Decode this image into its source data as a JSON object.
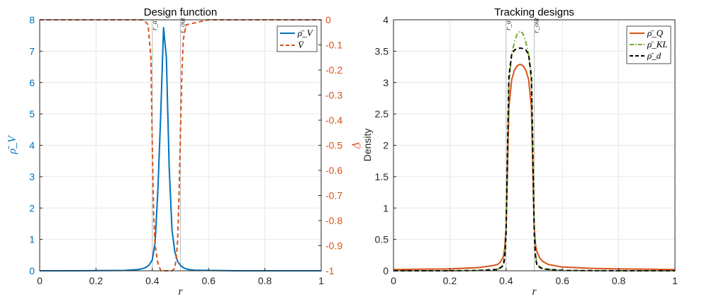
{
  "chart_data": [
    {
      "type": "line",
      "title": "Design function",
      "xlabel": "r",
      "ylabel": "ρ̄_V",
      "ylabel_right": "V̄",
      "xlim": [
        0,
        1
      ],
      "ylim": [
        0,
        8
      ],
      "ylim_right": [
        -1,
        0
      ],
      "xticks": [
        0,
        0.2,
        0.4,
        0.6,
        0.8,
        1
      ],
      "xtick_labels": [
        "0",
        "0.2",
        "0.4",
        "0.6",
        "0.8",
        "1"
      ],
      "yticks": [
        0,
        1,
        2,
        3,
        4,
        5,
        6,
        7,
        8
      ],
      "ytick_labels": [
        "0",
        "1",
        "2",
        "3",
        "4",
        "5",
        "6",
        "7",
        "8"
      ],
      "yticks_right": [
        0,
        -0.1,
        -0.2,
        -0.3,
        -0.4,
        -0.5,
        -0.6,
        -0.7,
        -0.8,
        -0.9,
        -1
      ],
      "ytick_labels_right": [
        "0",
        "-0.1",
        "-0.2",
        "-0.3",
        "-0.4",
        "-0.5",
        "-0.6",
        "-0.7",
        "-0.8",
        "-0.9",
        "-1"
      ],
      "grid": true,
      "legend_position": "top-right",
      "vlines": [
        {
          "x": 0.4,
          "label": "r_a"
        },
        {
          "x": 0.5,
          "label": "r_out"
        }
      ],
      "series": [
        {
          "name": "ρ̄_V",
          "axis": "left",
          "color": "#0072BD",
          "style": "solid",
          "x": [
            0,
            0.1,
            0.2,
            0.3,
            0.35,
            0.37,
            0.38,
            0.39,
            0.4,
            0.41,
            0.42,
            0.43,
            0.44,
            0.45,
            0.46,
            0.47,
            0.48,
            0.49,
            0.5,
            0.51,
            0.52,
            0.53,
            0.55,
            0.6,
            0.7,
            0.8,
            0.9,
            1
          ],
          "y": [
            0,
            0,
            0.005,
            0.01,
            0.04,
            0.08,
            0.12,
            0.2,
            0.35,
            0.9,
            2.6,
            5.0,
            7.75,
            6.8,
            3.3,
            1.3,
            0.6,
            0.3,
            0.17,
            0.1,
            0.06,
            0.04,
            0.02,
            0.01,
            0,
            0,
            0,
            0
          ]
        },
        {
          "name": "V̄",
          "axis": "right",
          "color": "#D95319",
          "style": "dashed",
          "x": [
            0,
            0.1,
            0.2,
            0.3,
            0.37,
            0.385,
            0.395,
            0.4,
            0.405,
            0.41,
            0.42,
            0.43,
            0.45,
            0.47,
            0.48,
            0.485,
            0.49,
            0.495,
            0.5,
            0.505,
            0.51,
            0.52,
            0.6,
            0.8,
            1
          ],
          "y": [
            0,
            0,
            0,
            0,
            0,
            -0.02,
            -0.15,
            -0.5,
            -0.78,
            -0.9,
            -0.97,
            -1,
            -1,
            -1,
            -0.99,
            -0.95,
            -0.88,
            -0.7,
            -0.45,
            -0.22,
            -0.08,
            -0.02,
            0,
            0,
            0
          ]
        }
      ]
    },
    {
      "type": "line",
      "title": "Tracking designs",
      "xlabel": "r",
      "ylabel": "Density",
      "xlim": [
        0,
        1
      ],
      "ylim": [
        0,
        4
      ],
      "xticks": [
        0,
        0.2,
        0.4,
        0.6,
        0.8,
        1
      ],
      "xtick_labels": [
        "0",
        "0.2",
        "0.4",
        "0.6",
        "0.8",
        "1"
      ],
      "yticks": [
        0,
        0.5,
        1,
        1.5,
        2,
        2.5,
        3,
        3.5,
        4
      ],
      "ytick_labels": [
        "0",
        "0.5",
        "1",
        "1.5",
        "2",
        "2.5",
        "3",
        "3.5",
        "4"
      ],
      "grid": true,
      "legend_position": "top-right",
      "vlines": [
        {
          "x": 0.4,
          "label": "r_a"
        },
        {
          "x": 0.5,
          "label": "r_out"
        }
      ],
      "series": [
        {
          "name": "ρ̄_Q",
          "color": "#D95319",
          "style": "solid",
          "x": [
            0,
            0.1,
            0.2,
            0.3,
            0.35,
            0.37,
            0.38,
            0.39,
            0.395,
            0.4,
            0.405,
            0.41,
            0.42,
            0.43,
            0.44,
            0.45,
            0.46,
            0.47,
            0.48,
            0.49,
            0.495,
            0.5,
            0.505,
            0.51,
            0.52,
            0.53,
            0.55,
            0.6,
            0.7,
            0.8,
            0.9,
            1
          ],
          "y": [
            0.02,
            0.025,
            0.03,
            0.05,
            0.08,
            0.1,
            0.14,
            0.22,
            0.35,
            0.7,
            1.6,
            2.6,
            3.05,
            3.2,
            3.27,
            3.29,
            3.27,
            3.2,
            3.05,
            2.6,
            1.6,
            0.7,
            0.4,
            0.3,
            0.2,
            0.15,
            0.1,
            0.06,
            0.04,
            0.03,
            0.025,
            0.02
          ]
        },
        {
          "name": "ρ̄_KL",
          "color": "#77AC30",
          "style": "dash-dot",
          "x": [
            0,
            0.2,
            0.3,
            0.37,
            0.39,
            0.395,
            0.4,
            0.405,
            0.41,
            0.42,
            0.43,
            0.44,
            0.45,
            0.46,
            0.47,
            0.48,
            0.49,
            0.495,
            0.5,
            0.505,
            0.51,
            0.53,
            0.6,
            0.8,
            1
          ],
          "y": [
            0,
            0,
            0.005,
            0.02,
            0.1,
            0.25,
            0.7,
            1.8,
            3.0,
            3.45,
            3.65,
            3.78,
            3.82,
            3.78,
            3.65,
            3.45,
            3.0,
            1.8,
            0.7,
            0.25,
            0.1,
            0.03,
            0.005,
            0,
            0
          ]
        },
        {
          "name": "ρ̄_d",
          "color": "#000000",
          "style": "dashed",
          "x": [
            0,
            0.2,
            0.3,
            0.37,
            0.39,
            0.395,
            0.4,
            0.405,
            0.41,
            0.42,
            0.43,
            0.44,
            0.45,
            0.46,
            0.47,
            0.48,
            0.49,
            0.495,
            0.5,
            0.505,
            0.51,
            0.53,
            0.6,
            0.8,
            1
          ],
          "y": [
            0,
            0,
            0.005,
            0.02,
            0.08,
            0.2,
            0.6,
            1.9,
            3.1,
            3.45,
            3.52,
            3.54,
            3.55,
            3.54,
            3.52,
            3.45,
            3.1,
            1.9,
            0.6,
            0.2,
            0.08,
            0.03,
            0.005,
            0,
            0
          ]
        }
      ]
    }
  ],
  "colors": {
    "left_axis": "#0072BD",
    "right_axis": "#D95319",
    "grid": "#e6e6e6"
  }
}
